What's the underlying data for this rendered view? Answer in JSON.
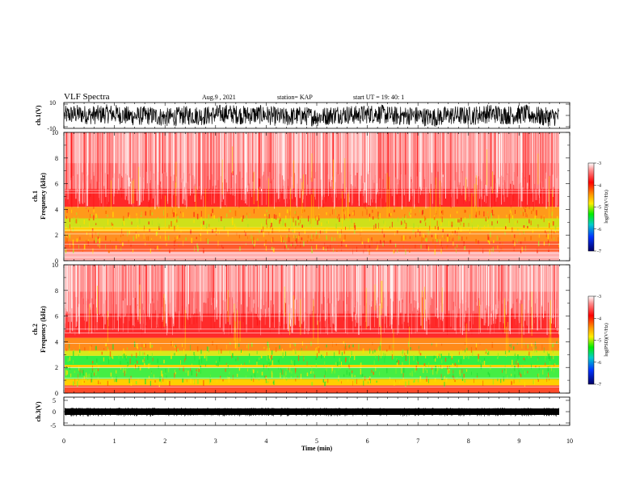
{
  "header": {
    "title": "VLF Spectra",
    "date": "Aug.9  , 2021",
    "station": "station= KAP",
    "start": "start  UT  =   19: 40: 1"
  },
  "colors": {
    "background_high": "#ff3030",
    "mid": "#ffd000",
    "low": "#33ee44",
    "trace": "#000000"
  },
  "chart_data": [
    {
      "id": "ch1-waveform",
      "type": "line",
      "ylabel": "ch.1(V)",
      "ylim": [
        -10,
        10
      ],
      "yticks": [
        "10",
        "-10"
      ],
      "xlim": [
        0,
        10
      ]
    },
    {
      "id": "ch1-spectrogram",
      "type": "heatmap",
      "ylabel": "ch.1\nFrequency  (kHz)",
      "ylim": [
        0,
        10
      ],
      "yticks": [
        "0",
        "2",
        "4",
        "6",
        "8",
        "10"
      ],
      "colorbar": {
        "label": "log(PSD)(V²/Hz)",
        "range": [
          -7,
          -3
        ],
        "ticks": [
          "-3",
          "-4",
          "-5",
          "-6",
          "-7"
        ]
      }
    },
    {
      "id": "ch2-spectrogram",
      "type": "heatmap",
      "ylabel": "ch.2\nFrequency  (kHz)",
      "ylim": [
        0,
        10
      ],
      "yticks": [
        "0",
        "2",
        "4",
        "6",
        "8",
        "10"
      ],
      "colorbar": {
        "label": "log(PSD)(V²/Hz)",
        "range": [
          -7,
          -3
        ],
        "ticks": [
          "-3",
          "-4",
          "-5",
          "-6",
          "-7"
        ]
      }
    },
    {
      "id": "ch3-waveform",
      "type": "line",
      "ylabel": "ch.3(V)",
      "ylim": [
        -5,
        5
      ],
      "yticks": [
        "5",
        "0",
        "-5"
      ],
      "xlabel": "Time  (min)",
      "xlim": [
        0,
        10
      ],
      "xticks": [
        "0",
        "1",
        "2",
        "3",
        "4",
        "5",
        "6",
        "7",
        "8",
        "9",
        "10"
      ]
    }
  ]
}
